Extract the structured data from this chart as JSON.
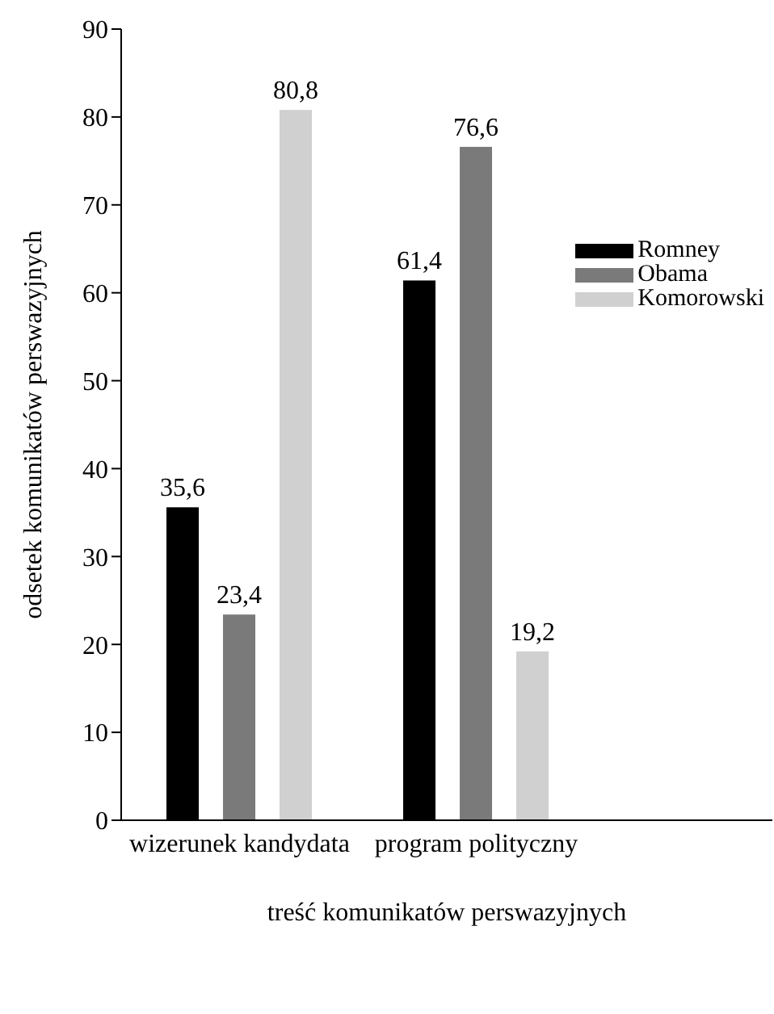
{
  "chart_data": {
    "type": "bar",
    "xlabel": "treść komunikatów perswazyjnych",
    "ylabel": "odsetek komunikatów perswazyjnych",
    "categories": [
      "wizerunek kandydata",
      "program polityczny"
    ],
    "series": [
      {
        "name": "Romney",
        "color": "#000000",
        "values": [
          35.6,
          61.4
        ],
        "value_labels": [
          "35,6",
          "61,4"
        ]
      },
      {
        "name": "Obama",
        "color": "#7a7a7a",
        "values": [
          23.4,
          76.6
        ],
        "value_labels": [
          "23,4",
          "76,6"
        ]
      },
      {
        "name": "Komorowski",
        "color": "#d0d0d0",
        "values": [
          80.8,
          19.2
        ],
        "value_labels": [
          "80,8",
          "19,2"
        ]
      }
    ],
    "ylim": [
      0,
      90
    ],
    "yticks": [
      0,
      10,
      20,
      30,
      40,
      50,
      60,
      70,
      80,
      90
    ],
    "grid": false,
    "legend": "top right"
  }
}
